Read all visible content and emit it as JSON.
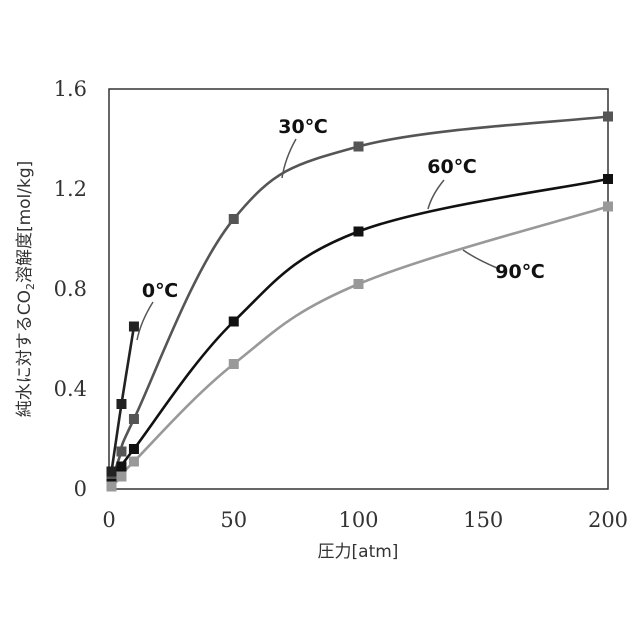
{
  "chart_data": {
    "type": "line",
    "title": "",
    "xlabel": "圧力[atm]",
    "ylabel_parts": [
      "純水に対するCO",
      "2",
      "溶解度[mol/kg]"
    ],
    "xlim": [
      0,
      200
    ],
    "ylim": [
      0,
      1.6
    ],
    "x_ticks": [
      "0",
      "50",
      "100",
      "150",
      "200"
    ],
    "y_ticks": [
      "0",
      "0.4",
      "0.8",
      "1.2",
      "1.6"
    ],
    "grid": false,
    "series": [
      {
        "name": "0℃",
        "color": "#222222",
        "points": [
          [
            1,
            0.07
          ],
          [
            5,
            0.34
          ],
          [
            10,
            0.65
          ]
        ]
      },
      {
        "name": "30℃",
        "color": "#555555",
        "points": [
          [
            1,
            0.03
          ],
          [
            5,
            0.15
          ],
          [
            10,
            0.28
          ],
          [
            50,
            1.08
          ],
          [
            100,
            1.37
          ],
          [
            200,
            1.49
          ]
        ]
      },
      {
        "name": "60℃",
        "color": "#111111",
        "points": [
          [
            1,
            0.02
          ],
          [
            5,
            0.09
          ],
          [
            10,
            0.16
          ],
          [
            50,
            0.67
          ],
          [
            100,
            1.03
          ],
          [
            200,
            1.24
          ]
        ]
      },
      {
        "name": "90℃",
        "color": "#999999",
        "points": [
          [
            1,
            0.01
          ],
          [
            5,
            0.05
          ],
          [
            10,
            0.11
          ],
          [
            50,
            0.5
          ],
          [
            100,
            0.82
          ],
          [
            200,
            1.13
          ]
        ]
      }
    ]
  }
}
